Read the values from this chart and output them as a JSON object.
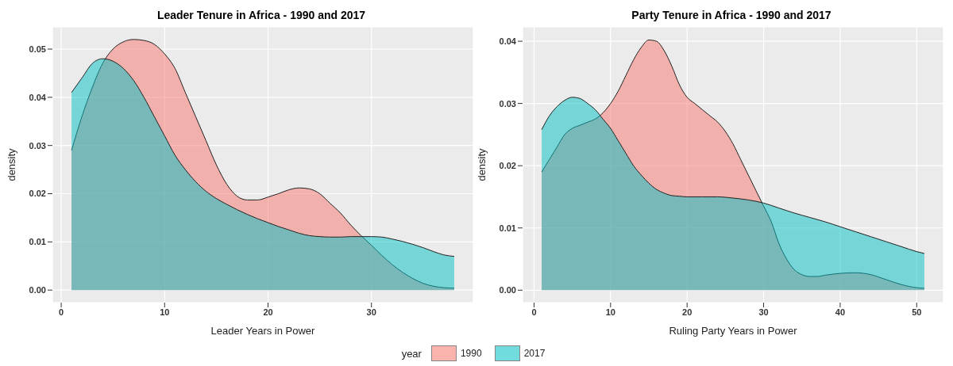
{
  "chart_data": [
    {
      "type": "area",
      "title": "Leader Tenure in Africa - 1990 and 2017",
      "xlabel": "Leader Years in Power",
      "ylabel": "density",
      "legend_title": "year",
      "legend": "bottom",
      "grid": true,
      "xlim": [
        -0.85,
        39.85
      ],
      "xticks": [
        0,
        10,
        20,
        30
      ],
      "ylim": [
        -0.0026,
        0.0546
      ],
      "yticks": [
        {
          "value": 0,
          "label": "0.00"
        },
        0.01,
        0.02,
        0.03,
        0.04,
        0.05
      ],
      "series": [
        {
          "name": "1990",
          "color": "#f8766d",
          "x": [
            1,
            2,
            3,
            4,
            5,
            6,
            7,
            8,
            9,
            10,
            11,
            12,
            13,
            14,
            15,
            16,
            17,
            18,
            19,
            20,
            21,
            22,
            23,
            24,
            25,
            26,
            27,
            28,
            29,
            30,
            31,
            32,
            33,
            34,
            35,
            36,
            37,
            38
          ],
          "values": [
            0.029,
            0.036,
            0.042,
            0.047,
            0.05,
            0.0515,
            0.052,
            0.0518,
            0.051,
            0.049,
            0.046,
            0.041,
            0.036,
            0.031,
            0.026,
            0.022,
            0.0195,
            0.0187,
            0.0187,
            0.0193,
            0.02,
            0.0208,
            0.0212,
            0.021,
            0.02,
            0.018,
            0.016,
            0.0135,
            0.0113,
            0.0093,
            0.0072,
            0.0053,
            0.0037,
            0.0024,
            0.0014,
            0.0008,
            0.0005,
            0.0004
          ]
        },
        {
          "name": "2017",
          "color": "#00bfc4",
          "x": [
            1,
            2,
            3,
            4,
            5,
            6,
            7,
            8,
            9,
            10,
            11,
            12,
            13,
            14,
            15,
            16,
            17,
            18,
            19,
            20,
            21,
            22,
            23,
            24,
            25,
            26,
            27,
            28,
            29,
            30,
            31,
            32,
            33,
            34,
            35,
            36,
            37,
            38
          ],
          "values": [
            0.041,
            0.044,
            0.047,
            0.048,
            0.0475,
            0.046,
            0.0435,
            0.04,
            0.036,
            0.032,
            0.028,
            0.025,
            0.0225,
            0.0205,
            0.019,
            0.0178,
            0.0167,
            0.0157,
            0.0148,
            0.014,
            0.0132,
            0.0125,
            0.0118,
            0.0113,
            0.0111,
            0.011,
            0.011,
            0.0111,
            0.0111,
            0.0111,
            0.011,
            0.0106,
            0.0101,
            0.0095,
            0.0088,
            0.008,
            0.0073,
            0.007
          ]
        }
      ]
    },
    {
      "type": "area",
      "title": "Party Tenure in Africa - 1990 and 2017",
      "xlabel": "Ruling Party Years in Power",
      "ylabel": "density",
      "grid": true,
      "xlim": [
        -1.5,
        53.5
      ],
      "xticks": [
        0,
        10,
        20,
        30,
        40,
        50
      ],
      "ylim": [
        -0.002,
        0.0423
      ],
      "yticks": [
        {
          "value": 0,
          "label": "0.00"
        },
        0.01,
        0.02,
        0.03,
        0.04
      ],
      "series": [
        {
          "name": "1990",
          "color": "#f8766d",
          "x": [
            1,
            2,
            3,
            4,
            5,
            6,
            7,
            8,
            9,
            10,
            11,
            12,
            13,
            14,
            15,
            16,
            17,
            18,
            19,
            20,
            21,
            22,
            23,
            24,
            25,
            26,
            27,
            28,
            29,
            30,
            31,
            32,
            33,
            34,
            35,
            36,
            37,
            38,
            40,
            42,
            44,
            46,
            48,
            50,
            51
          ],
          "values": [
            0.019,
            0.021,
            0.023,
            0.025,
            0.026,
            0.0265,
            0.027,
            0.0275,
            0.0285,
            0.03,
            0.032,
            0.0345,
            0.037,
            0.039,
            0.0402,
            0.04,
            0.0385,
            0.036,
            0.033,
            0.031,
            0.03,
            0.029,
            0.028,
            0.027,
            0.0255,
            0.0235,
            0.021,
            0.0185,
            0.016,
            0.0135,
            0.011,
            0.0075,
            0.005,
            0.0033,
            0.0025,
            0.0022,
            0.0022,
            0.0024,
            0.0027,
            0.0028,
            0.0025,
            0.0017,
            0.0009,
            0.0004,
            0.0003
          ]
        },
        {
          "name": "2017",
          "color": "#00bfc4",
          "x": [
            1,
            2,
            3,
            4,
            5,
            6,
            7,
            8,
            9,
            10,
            11,
            12,
            13,
            14,
            15,
            16,
            17,
            18,
            19,
            20,
            22,
            24,
            26,
            28,
            30,
            32,
            34,
            36,
            38,
            40,
            42,
            44,
            46,
            48,
            50,
            51
          ],
          "values": [
            0.0258,
            0.028,
            0.0295,
            0.0305,
            0.031,
            0.0308,
            0.03,
            0.029,
            0.0275,
            0.026,
            0.024,
            0.022,
            0.02,
            0.0185,
            0.0172,
            0.0162,
            0.0156,
            0.0152,
            0.0151,
            0.015,
            0.015,
            0.015,
            0.0148,
            0.0145,
            0.014,
            0.0132,
            0.0124,
            0.0117,
            0.011,
            0.0102,
            0.0094,
            0.0086,
            0.0078,
            0.007,
            0.0062,
            0.0059
          ]
        }
      ]
    }
  ]
}
